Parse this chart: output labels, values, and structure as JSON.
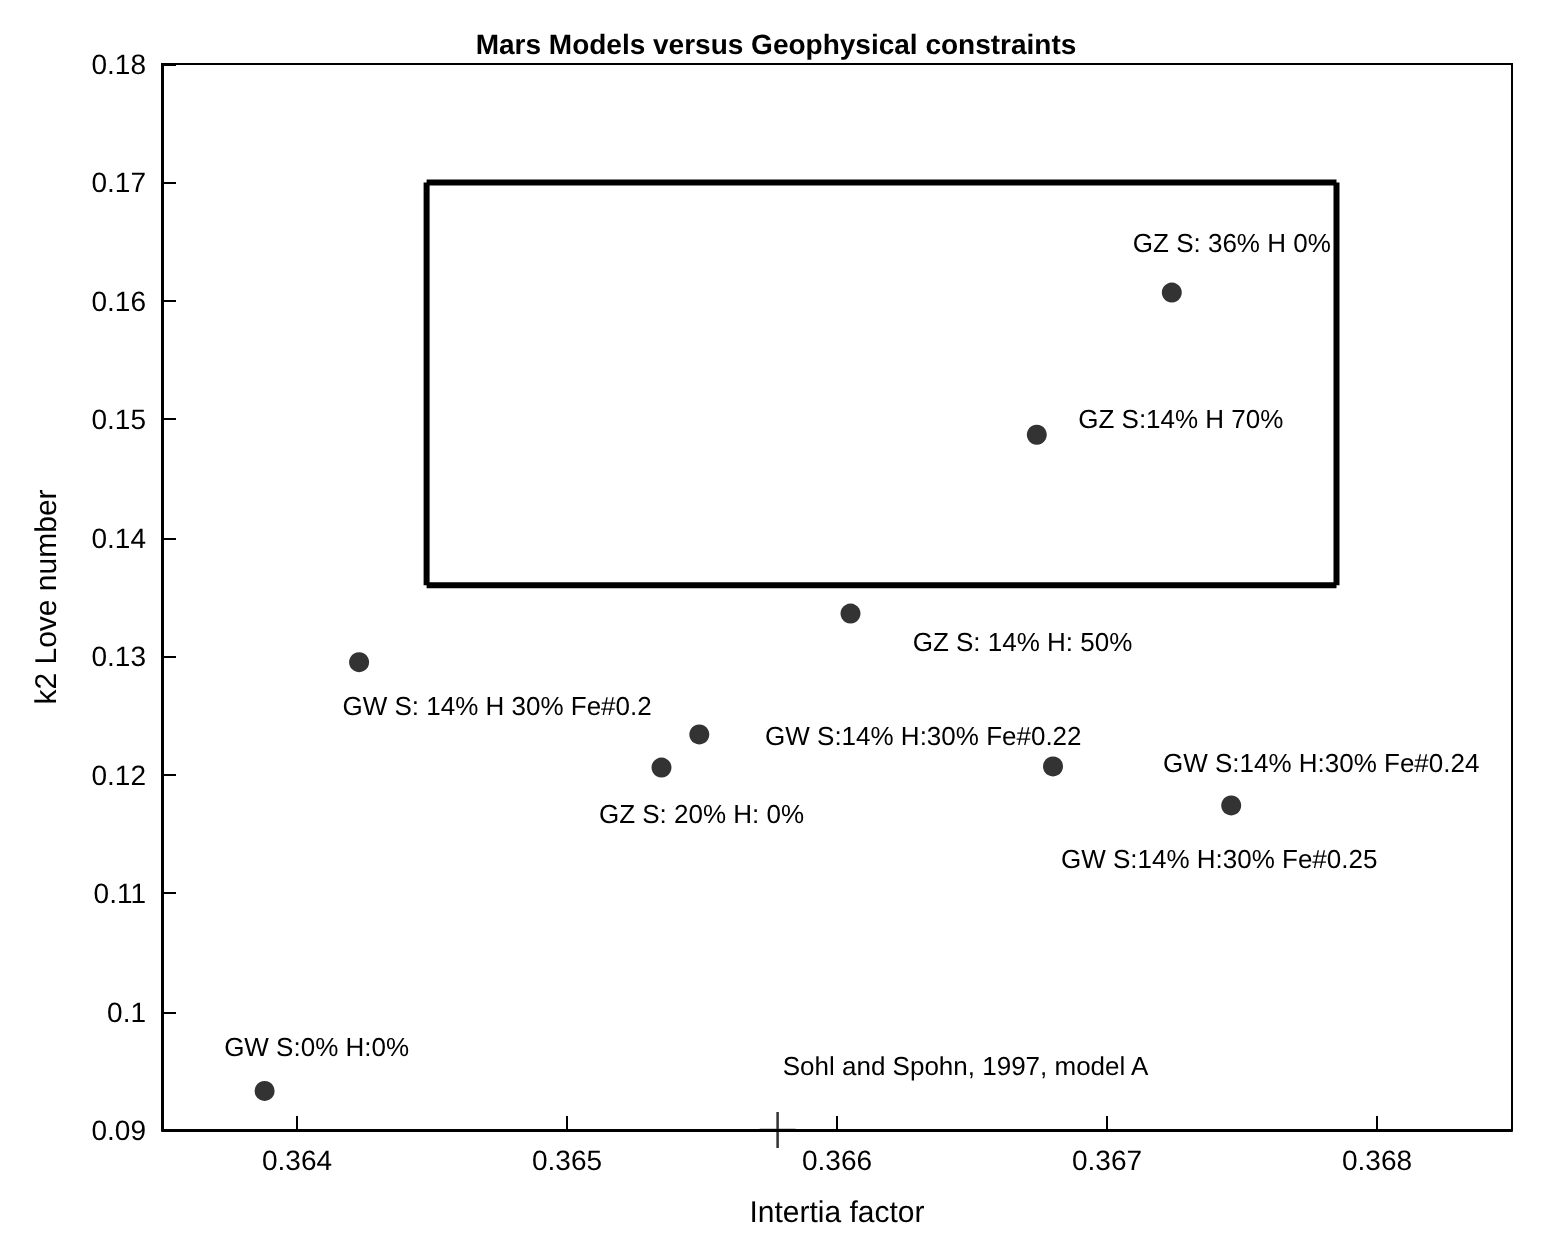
{
  "chart_data": {
    "type": "scatter",
    "title": "Mars Models versus Geophysical constraints",
    "xlabel": "Intertia factor",
    "ylabel": "k2 Love number",
    "xlim": [
      0.3635,
      0.3685
    ],
    "xticks": [
      0.364,
      0.365,
      0.366,
      0.367,
      0.368
    ],
    "ylim": [
      0.09,
      0.18
    ],
    "yticks": [
      0.09,
      0.1,
      0.11,
      0.12,
      0.13,
      0.14,
      0.15,
      0.16,
      0.17,
      0.18
    ],
    "series": [
      {
        "type": "scatter",
        "marker": "circle",
        "color": "#000000",
        "x": [
          0.36423,
          0.36605,
          0.36549,
          0.36535,
          0.3668,
          0.36746,
          0.36388,
          0.36724,
          0.36674
        ],
        "values": [
          0.1295,
          0.1336,
          0.1234,
          0.1206,
          0.1207,
          0.1174,
          0.0933,
          0.1607,
          0.1487
        ]
      },
      {
        "type": "line",
        "marker": "none",
        "line_style": "solid",
        "color": "#000000",
        "x": [
          0.36448,
          0.36785
        ],
        "values": [
          0.136,
          0.136
        ]
      },
      {
        "type": "line",
        "marker": "none",
        "line_style": "solid",
        "color": "#000000",
        "x": [
          0.36448,
          0.36785
        ],
        "values": [
          0.17,
          0.17
        ]
      },
      {
        "type": "line",
        "marker": "none",
        "line_style": "solid",
        "color": "#000000",
        "x": [
          0.36448,
          0.36448
        ],
        "values": [
          0.136,
          0.17
        ]
      },
      {
        "type": "line",
        "marker": "none",
        "line_style": "solid",
        "color": "#000000",
        "x": [
          0.36785,
          0.36785
        ],
        "values": [
          0.136,
          0.17
        ]
      },
      {
        "type": "scatter",
        "marker": "cross",
        "color": "#000000",
        "x": [
          0.36578
        ],
        "values": [
          0.09
        ]
      }
    ],
    "annotations": [
      {
        "text": "GZ S: 36% H 0%",
        "x": 0.36724,
        "y": 0.1607
      },
      {
        "text": "GZ S:14% H 70%",
        "x": 0.36674,
        "y": 0.1487
      },
      {
        "text": "GZ S: 14% H: 50%",
        "x": 0.36605,
        "y": 0.1336
      },
      {
        "text": "GW S: 14% H 30% Fe#0.2",
        "x": 0.36423,
        "y": 0.1295
      },
      {
        "text": "GW S:14% H:30% Fe#0.22",
        "x": 0.36549,
        "y": 0.1234
      },
      {
        "text": "GZ S: 20% H: 0%",
        "x": 0.36535,
        "y": 0.1206
      },
      {
        "text": "GW S:14% H:30% Fe#0.24",
        "x": 0.36746,
        "y": 0.1174
      },
      {
        "text": "GW S:14% H:30% Fe#0.25",
        "x": 0.36746,
        "y": 0.1174
      },
      {
        "text": "GW S:0% H:0%",
        "x": 0.36388,
        "y": 0.0933
      },
      {
        "text": "Sohl and Spohn, 1997, model A",
        "x": 0.36578,
        "y": 0.09
      }
    ]
  }
}
